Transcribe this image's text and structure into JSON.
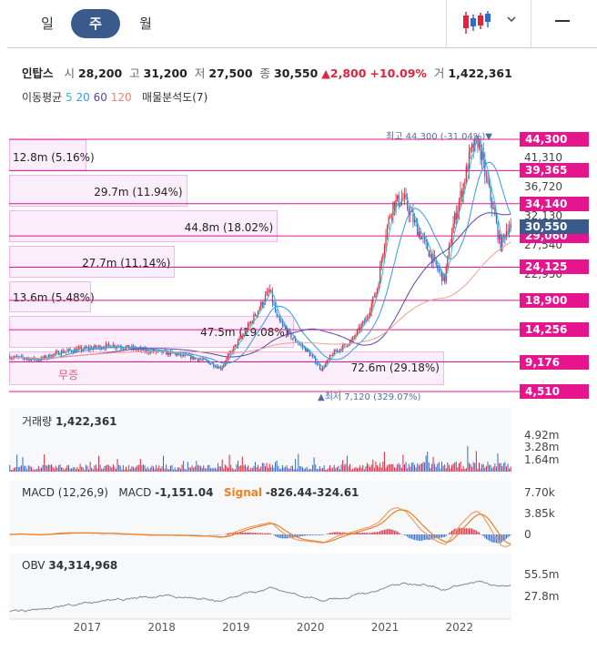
{
  "tabs": [
    {
      "label": "일"
    },
    {
      "label": "주"
    },
    {
      "label": "월"
    }
  ],
  "icons": {
    "candle": "candlestick-icon",
    "dropdown": "chevron-down-icon",
    "menu": "menu-icon"
  },
  "quote": {
    "name": "인탑스",
    "open_label": "시",
    "open": "28,200",
    "high_label": "고",
    "high": "31,200",
    "low_label": "저",
    "low": "27,500",
    "close_label": "종",
    "close": "30,550",
    "change": "▲2,800",
    "change_pct": "+10.09%",
    "volume_label": "거",
    "volume": "1,422,361"
  },
  "ma": {
    "label": "이동평균",
    "p5": "5",
    "p20": "20",
    "p60": "60",
    "p120": "120",
    "vp_label": "매물분석도(7)"
  },
  "colors": {
    "up": "#e0243c",
    "down": "#2f6bd6",
    "ma5": "#27c4c0",
    "ma20": "#3399ee",
    "ma60": "#5547a8",
    "ma120": "#f0a090",
    "tag": "#e6158d",
    "current": "#3a5a8c",
    "signal": "#f08020"
  },
  "price_levels": [
    {
      "label": "44,300",
      "price": 44300
    },
    {
      "label": "39,365",
      "price": 39365
    },
    {
      "label": "34,140",
      "price": 34140
    },
    {
      "label": "29,060",
      "price": 29060
    },
    {
      "label": "24,125",
      "price": 24125
    },
    {
      "label": "18,900",
      "price": 18900
    },
    {
      "label": "14,256",
      "price": 14256
    },
    {
      "label": "9,176",
      "price": 9176
    },
    {
      "label": "4,510",
      "price": 4510
    }
  ],
  "current_price": {
    "label": "30,550",
    "price": 30550
  },
  "axis_prices": [
    {
      "label": "41,310",
      "price": 41310
    },
    {
      "label": "36,720",
      "price": 36720
    },
    {
      "label": "32,130",
      "price": 32130
    },
    {
      "label": "27,540",
      "price": 27540
    },
    {
      "label": "22,950",
      "price": 22950
    }
  ],
  "volume_profile": [
    {
      "label": "12.8m (5.16%)",
      "fraction": 0.0516
    },
    {
      "label": "29.7m (11.94%)",
      "fraction": 0.1194
    },
    {
      "label": "44.8m (18.02%)",
      "fraction": 0.1802
    },
    {
      "label": "27.7m (11.14%)",
      "fraction": 0.1114
    },
    {
      "label": "13.6m (5.48%)",
      "fraction": 0.0548
    },
    {
      "label": "47.5m (19.08%)",
      "fraction": 0.1908
    },
    {
      "label": "72.6m (29.18%)",
      "fraction": 0.2918
    }
  ],
  "annotations": {
    "high_label": "최고",
    "high_value": "44,300 (-31.04%)▼",
    "low_label": "▲최저",
    "low_value": "7,120 (329.07%)",
    "no_trade": "무증"
  },
  "volume_panel": {
    "label": "거래량",
    "value": "1,422,361",
    "axis": [
      "4.92m",
      "3.28m",
      "1.64m"
    ]
  },
  "macd_panel": {
    "label": "MACD (12,26,9)",
    "macd_label": "MACD",
    "macd_value": "-1,151.04",
    "signal_label": "Signal",
    "signal_value": "-826.44",
    "hist_value": "-324.61",
    "axis": [
      "7.70k",
      "3.85k",
      "0"
    ]
  },
  "obv_panel": {
    "label": "OBV",
    "value": "34,314,968",
    "axis": [
      "55.5m",
      "27.8m"
    ]
  },
  "years": [
    "2017",
    "2018",
    "2019",
    "2020",
    "2021",
    "2022"
  ],
  "chart_data": {
    "type": "candlestick",
    "timeframe": "weekly",
    "x_years": [
      "2017",
      "2018",
      "2019",
      "2020",
      "2021",
      "2022"
    ],
    "ylim": [
      4510,
      44300
    ],
    "price_path": [
      {
        "t": 2016.0,
        "p": 10000
      },
      {
        "t": 2016.4,
        "p": 9500
      },
      {
        "t": 2016.7,
        "p": 10800
      },
      {
        "t": 2017.0,
        "p": 11200
      },
      {
        "t": 2017.4,
        "p": 11800
      },
      {
        "t": 2017.8,
        "p": 11000
      },
      {
        "t": 2018.2,
        "p": 10500
      },
      {
        "t": 2018.6,
        "p": 9500
      },
      {
        "t": 2018.85,
        "p": 8200
      },
      {
        "t": 2018.95,
        "p": 10200
      },
      {
        "t": 2019.15,
        "p": 13500
      },
      {
        "t": 2019.35,
        "p": 17500
      },
      {
        "t": 2019.5,
        "p": 20500
      },
      {
        "t": 2019.6,
        "p": 16000
      },
      {
        "t": 2019.8,
        "p": 13000
      },
      {
        "t": 2020.0,
        "p": 11000
      },
      {
        "t": 2020.2,
        "p": 8000
      },
      {
        "t": 2020.35,
        "p": 10500
      },
      {
        "t": 2020.6,
        "p": 12500
      },
      {
        "t": 2020.8,
        "p": 16000
      },
      {
        "t": 2020.95,
        "p": 21000
      },
      {
        "t": 2021.05,
        "p": 29000
      },
      {
        "t": 2021.15,
        "p": 34000
      },
      {
        "t": 2021.3,
        "p": 35000
      },
      {
        "t": 2021.45,
        "p": 31000
      },
      {
        "t": 2021.6,
        "p": 27500
      },
      {
        "t": 2021.75,
        "p": 24000
      },
      {
        "t": 2021.85,
        "p": 22000
      },
      {
        "t": 2021.95,
        "p": 30000
      },
      {
        "t": 2022.1,
        "p": 37000
      },
      {
        "t": 2022.2,
        "p": 42000
      },
      {
        "t": 2022.3,
        "p": 44300
      },
      {
        "t": 2022.4,
        "p": 38500
      },
      {
        "t": 2022.5,
        "p": 33500
      },
      {
        "t": 2022.6,
        "p": 27500
      },
      {
        "t": 2022.7,
        "p": 30550
      }
    ]
  }
}
